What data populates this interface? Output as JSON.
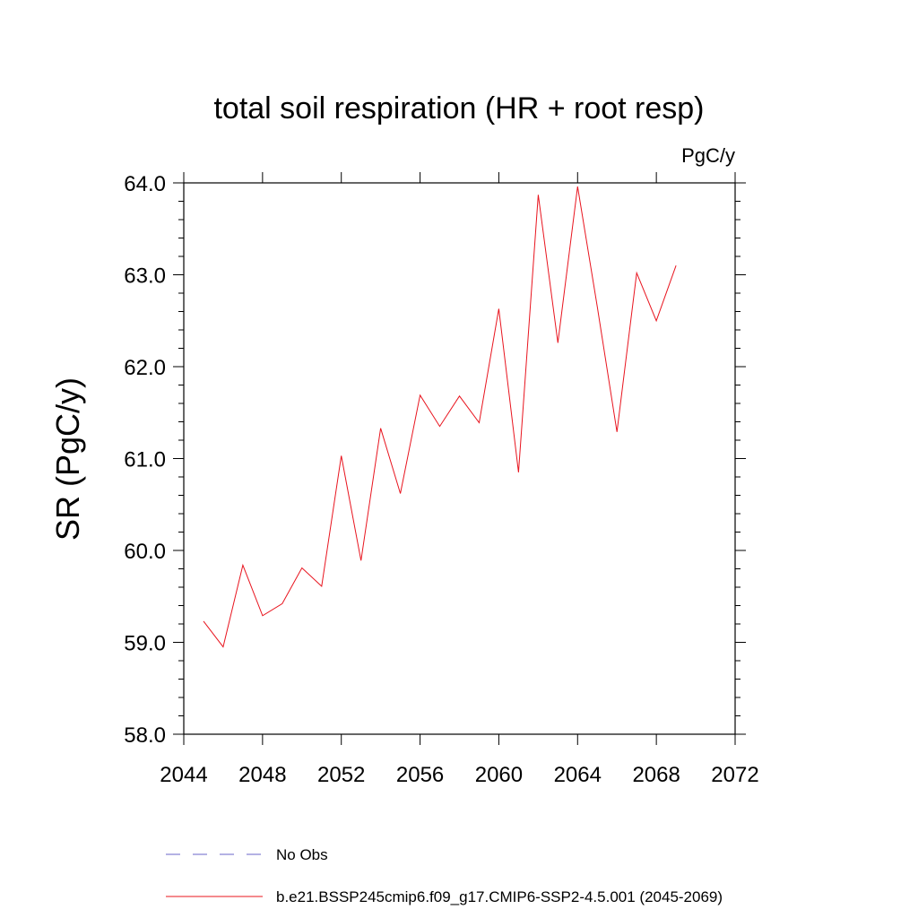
{
  "chart_data": {
    "type": "line",
    "title": "total soil respiration (HR + root resp)",
    "units": "PgC/y",
    "xlabel": "",
    "ylabel": "SR  (PgC/y)",
    "xlim": [
      2044,
      2072
    ],
    "ylim": [
      58.0,
      64.0
    ],
    "xticks": [
      2044,
      2048,
      2052,
      2056,
      2060,
      2064,
      2068,
      2072
    ],
    "xtick_labels": [
      "2044",
      "2048",
      "2052",
      "2056",
      "2060",
      "2064",
      "2068",
      "2072"
    ],
    "yticks": [
      58.0,
      59.0,
      60.0,
      61.0,
      62.0,
      63.0,
      64.0
    ],
    "ytick_labels": [
      "58.0",
      "59.0",
      "60.0",
      "61.0",
      "62.0",
      "63.0",
      "64.0"
    ],
    "grid": false,
    "legend_position": "bottom",
    "series": [
      {
        "name": "b.e21.BSSP245cmip6.f09_g17.CMIP6-SSP2-4.5.001 (2045-2069)",
        "color": "#e8141e",
        "style": "solid",
        "x": [
          2045,
          2046,
          2047,
          2048,
          2049,
          2050,
          2051,
          2052,
          2053,
          2054,
          2055,
          2056,
          2057,
          2058,
          2059,
          2060,
          2061,
          2062,
          2063,
          2064,
          2065,
          2066,
          2067,
          2068,
          2069
        ],
        "values": [
          59.23,
          58.95,
          59.84,
          59.29,
          59.42,
          59.81,
          59.61,
          61.03,
          59.89,
          61.33,
          60.62,
          61.69,
          61.35,
          61.68,
          61.39,
          62.63,
          60.85,
          63.87,
          62.26,
          63.96,
          62.65,
          61.29,
          63.02,
          62.5,
          63.1
        ]
      }
    ],
    "legend": [
      {
        "label": "No Obs",
        "color": "#6a64c8",
        "style": "dashed"
      },
      {
        "label": "b.e21.BSSP245cmip6.f09_g17.CMIP6-SSP2-4.5.001 (2045-2069)",
        "color": "#e8141e",
        "style": "solid"
      }
    ]
  }
}
